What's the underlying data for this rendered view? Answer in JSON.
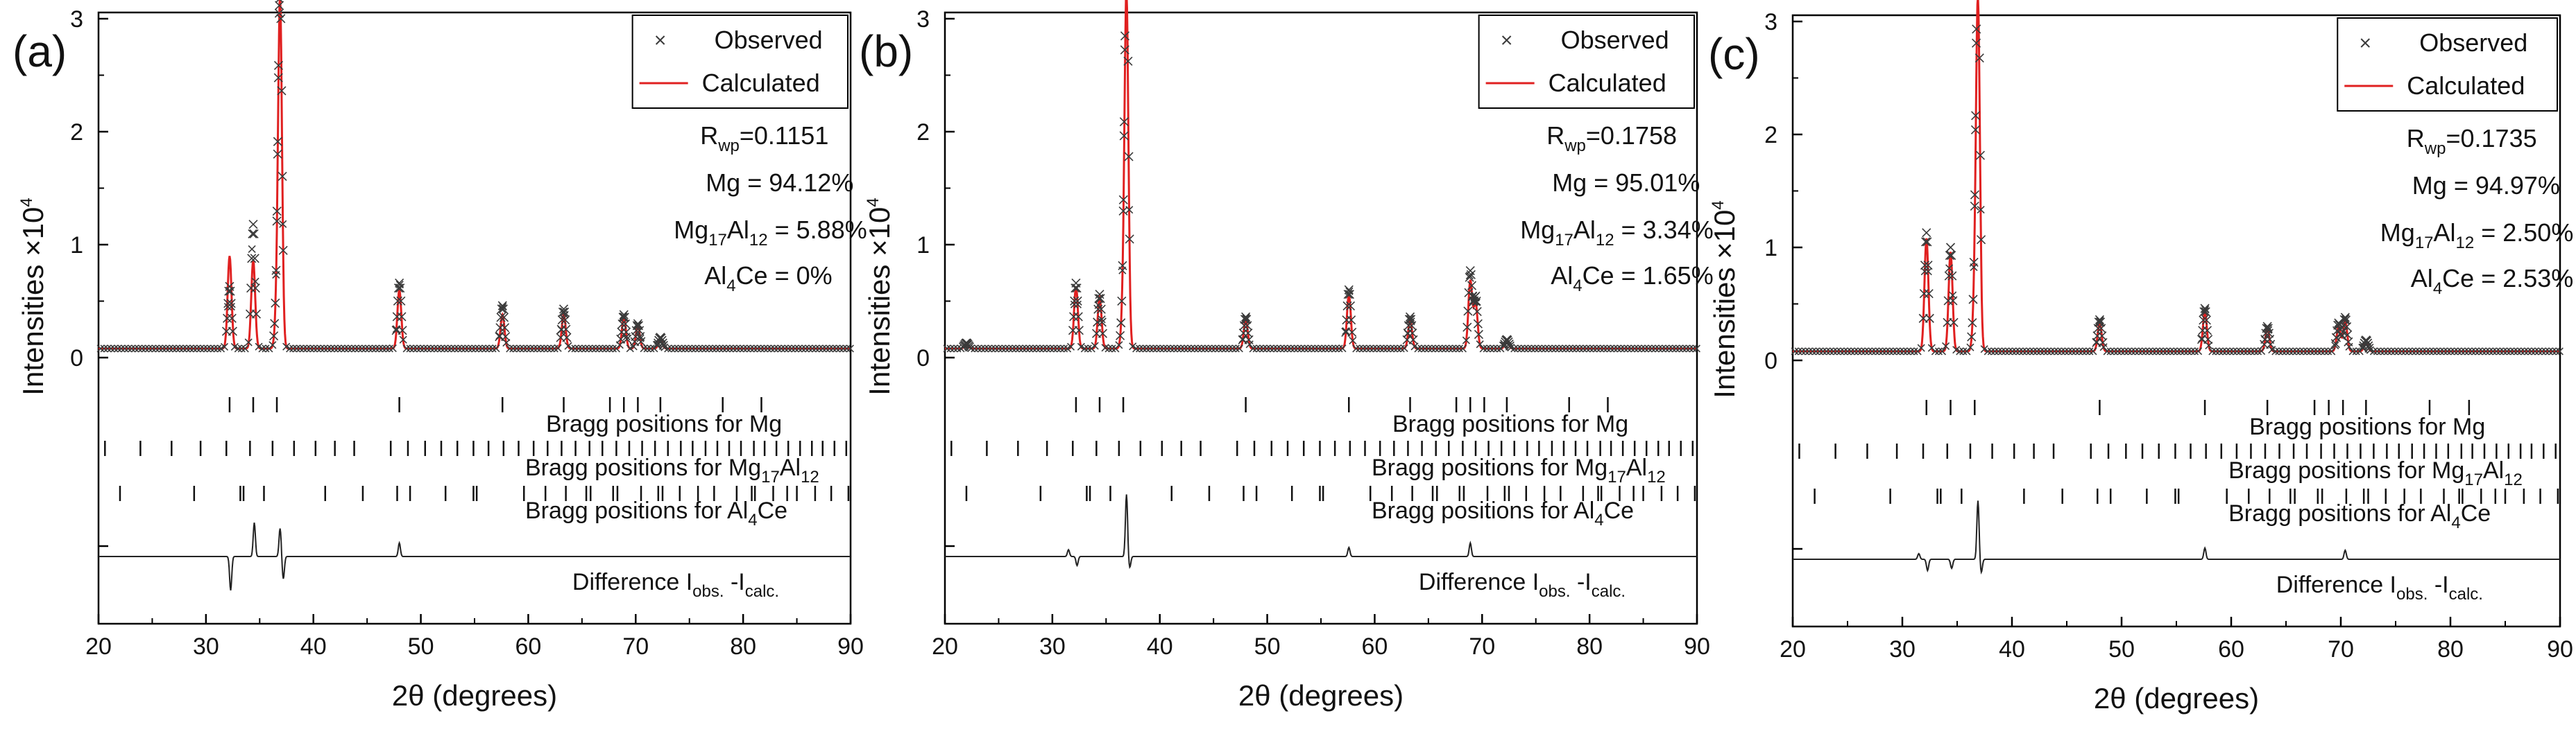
{
  "chart_data": [
    {
      "type": "line",
      "panel_label": "(a)",
      "xlabel": "2θ (degrees)",
      "ylabel_text": "Intensities ×10",
      "ylabel_sup": "4",
      "xlim": [
        20,
        90
      ],
      "xticks": [
        "20",
        "30",
        "40",
        "50",
        "60",
        "70",
        "80",
        "90"
      ],
      "yticks": [
        "0",
        "1",
        "2",
        "3"
      ],
      "legend": {
        "observed": "Observed",
        "calculated": "Calculated",
        "position": "top-right"
      },
      "rwp": {
        "prefix": "R",
        "sub": "wp",
        "value": "=0.1151"
      },
      "phases": [
        {
          "label": "Mg",
          "sub1": "",
          "mid": "",
          "sub2": "",
          "value": " = 94.12%"
        },
        {
          "label": "Mg",
          "sub1": "17",
          "mid": "Al",
          "sub2": "12",
          "value": " = 5.88%"
        },
        {
          "label": "Al",
          "sub1": "4",
          "mid": "Ce",
          "sub2": "",
          "value": " = 0%"
        }
      ],
      "bragg_labels": {
        "mg": "Bragg positions for Mg",
        "mg17_prefix": "Bragg positions for Mg",
        "mg17_sub1": "17",
        "mg17_mid": "Al",
        "mg17_sub2": "12",
        "al4ce_prefix": "Bragg positions for Al",
        "al4ce_sub": "4",
        "al4ce_suffix": "Ce"
      },
      "difference_label": {
        "text": "Difference I",
        "sub1": "obs.",
        "mid": " -I",
        "sub2": "calc."
      },
      "background": 0.08,
      "observed_peaks": [
        [
          32.2,
          0.55
        ],
        [
          34.4,
          1.1
        ],
        [
          36.6,
          0.35
        ],
        [
          36.9,
          3.12
        ],
        [
          48.0,
          0.58
        ],
        [
          57.6,
          0.38
        ],
        [
          63.3,
          0.35
        ],
        [
          68.9,
          0.3
        ],
        [
          70.2,
          0.22
        ],
        [
          72.3,
          0.1
        ]
      ],
      "calculated_peaks": [
        [
          32.2,
          0.82
        ],
        [
          34.4,
          0.78
        ],
        [
          36.6,
          0.3
        ],
        [
          36.9,
          3.05
        ],
        [
          48.0,
          0.52
        ],
        [
          57.6,
          0.3
        ],
        [
          63.3,
          0.3
        ],
        [
          68.9,
          0.28
        ],
        [
          70.2,
          0.2
        ],
        [
          72.3,
          0.08
        ]
      ],
      "difference_features": [
        [
          32.3,
          -0.3
        ],
        [
          34.5,
          0.3
        ],
        [
          36.9,
          0.25
        ],
        [
          37.2,
          -0.2
        ],
        [
          48.0,
          0.12
        ]
      ],
      "bragg_positions": {
        "mg": [
          32.2,
          34.4,
          36.6,
          48.0,
          57.6,
          63.3,
          67.6,
          68.9,
          70.2,
          72.3,
          78.1,
          81.7
        ],
        "mg17al12": [
          20.6,
          23.9,
          26.8,
          29.5,
          31.9,
          34.1,
          36.2,
          38.2,
          40.2,
          42.0,
          43.8,
          47.2,
          48.8,
          50.4,
          51.9,
          53.4,
          54.9,
          56.3,
          57.7,
          59.1,
          60.5,
          61.8,
          63.1,
          64.4,
          65.7,
          66.9,
          68.2,
          69.4,
          70.6,
          71.8,
          73.0,
          74.2,
          75.3,
          76.5,
          77.6,
          78.7,
          79.8,
          81.0,
          82.0,
          83.1,
          84.2,
          85.3,
          86.4,
          87.4,
          88.5,
          89.6
        ],
        "al4ce": [
          22.0,
          28.9,
          33.2,
          33.5,
          35.4,
          41.1,
          44.6,
          47.8,
          49.0,
          52.3,
          54.9,
          55.2,
          59.6,
          61.6,
          63.5,
          65.4,
          65.8,
          67.9,
          68.3,
          70.5,
          72.1,
          72.5,
          74.1,
          75.8,
          77.3,
          79.4,
          80.8,
          81.1,
          82.8,
          84.1,
          85.0,
          86.7,
          88.2,
          89.8
        ]
      }
    },
    {
      "type": "line",
      "panel_label": "(b)",
      "xlabel": "2θ (degrees)",
      "ylabel_text": "Intensities ×10",
      "ylabel_sup": "4",
      "xlim": [
        20,
        90
      ],
      "xticks": [
        "20",
        "30",
        "40",
        "50",
        "60",
        "70",
        "80",
        "90"
      ],
      "yticks": [
        "0",
        "1",
        "2",
        "3"
      ],
      "legend": {
        "observed": "Observed",
        "calculated": "Calculated",
        "position": "top-right"
      },
      "rwp": {
        "prefix": "R",
        "sub": "wp",
        "value": "=0.1758"
      },
      "phases": [
        {
          "label": "Mg",
          "sub1": "",
          "mid": "",
          "sub2": "",
          "value": " = 95.01%"
        },
        {
          "label": "Mg",
          "sub1": "17",
          "mid": "Al",
          "sub2": "12",
          "value": " = 3.34%"
        },
        {
          "label": "Al",
          "sub1": "4",
          "mid": "Ce",
          "sub2": "",
          "value": " = 1.65%"
        }
      ],
      "bragg_labels": {
        "mg": "Bragg positions for Mg",
        "mg17_prefix": "Bragg positions for Mg",
        "mg17_sub1": "17",
        "mg17_mid": "Al",
        "mg17_sub2": "12",
        "al4ce_prefix": "Bragg positions for Al",
        "al4ce_sub": "4",
        "al4ce_suffix": "Ce"
      },
      "difference_label": {
        "text": "Difference I",
        "sub1": "obs.",
        "mid": " -I",
        "sub2": "calc."
      },
      "background": 0.08,
      "observed_peaks": [
        [
          22.0,
          0.05
        ],
        [
          32.2,
          0.58
        ],
        [
          34.4,
          0.48
        ],
        [
          36.6,
          0.35
        ],
        [
          36.9,
          3.48
        ],
        [
          48.0,
          0.28
        ],
        [
          57.6,
          0.52
        ],
        [
          63.3,
          0.28
        ],
        [
          68.9,
          0.68
        ],
        [
          69.4,
          0.45
        ],
        [
          72.3,
          0.08
        ]
      ],
      "calculated_peaks": [
        [
          22.0,
          0.04
        ],
        [
          32.2,
          0.55
        ],
        [
          34.4,
          0.45
        ],
        [
          36.6,
          0.32
        ],
        [
          36.9,
          3.08
        ],
        [
          48.0,
          0.26
        ],
        [
          57.6,
          0.48
        ],
        [
          63.3,
          0.25
        ],
        [
          68.9,
          0.6
        ],
        [
          69.4,
          0.4
        ],
        [
          72.3,
          0.07
        ]
      ],
      "difference_features": [
        [
          31.5,
          0.06
        ],
        [
          32.3,
          -0.08
        ],
        [
          36.9,
          0.55
        ],
        [
          37.2,
          -0.1
        ],
        [
          57.6,
          0.08
        ],
        [
          68.9,
          0.12
        ]
      ],
      "bragg_positions": {
        "mg": [
          32.2,
          34.4,
          36.6,
          48.0,
          57.6,
          63.3,
          67.6,
          68.9,
          70.2,
          72.3,
          78.1,
          81.7
        ],
        "mg17al12": [
          20.6,
          23.9,
          26.8,
          29.5,
          31.9,
          34.1,
          36.2,
          38.2,
          40.2,
          42.0,
          43.8,
          47.2,
          48.8,
          50.4,
          51.9,
          53.4,
          54.9,
          56.3,
          57.7,
          59.1,
          60.5,
          61.8,
          63.1,
          64.4,
          65.7,
          66.9,
          68.2,
          69.4,
          70.6,
          71.8,
          73.0,
          74.2,
          75.3,
          76.5,
          77.6,
          78.7,
          79.8,
          81.0,
          82.0,
          83.1,
          84.2,
          85.3,
          86.4,
          87.4,
          88.5,
          89.6
        ],
        "al4ce": [
          22.0,
          28.9,
          33.2,
          33.5,
          35.4,
          41.1,
          44.6,
          47.8,
          49.0,
          52.3,
          54.9,
          55.2,
          59.6,
          61.6,
          63.5,
          65.4,
          65.8,
          67.9,
          68.3,
          70.5,
          72.1,
          72.5,
          74.1,
          75.8,
          77.3,
          79.4,
          80.8,
          81.1,
          82.8,
          84.1,
          85.0,
          86.7,
          88.2,
          89.8
        ]
      }
    },
    {
      "type": "line",
      "panel_label": "(c)",
      "xlabel": "2θ (degrees)",
      "ylabel_text": "Intensities ×10",
      "ylabel_sup": "4",
      "xlim": [
        20,
        90
      ],
      "xticks": [
        "20",
        "30",
        "40",
        "50",
        "60",
        "70",
        "80",
        "90"
      ],
      "yticks": [
        "0",
        "1",
        "2",
        "3"
      ],
      "legend": {
        "observed": "Observed",
        "calculated": "Calculated",
        "position": "top-right"
      },
      "rwp": {
        "prefix": "R",
        "sub": "wp",
        "value": "=0.1735"
      },
      "phases": [
        {
          "label": "Mg",
          "sub1": "",
          "mid": "",
          "sub2": "",
          "value": " = 94.97%"
        },
        {
          "label": "Mg",
          "sub1": "17",
          "mid": "Al",
          "sub2": "12",
          "value": " = 2.50%"
        },
        {
          "label": "Al",
          "sub1": "4",
          "mid": "Ce",
          "sub2": "",
          "value": " = 2.53%"
        }
      ],
      "bragg_labels": {
        "mg": "Bragg positions for Mg",
        "mg17_prefix": "Bragg positions for Mg",
        "mg17_sub1": "17",
        "mg17_mid": "Al",
        "mg17_sub2": "12",
        "al4ce_prefix": "Bragg positions for Al",
        "al4ce_sub": "4",
        "al4ce_suffix": "Ce"
      },
      "difference_label": {
        "text": "Difference I",
        "sub1": "obs.",
        "mid": " -I",
        "sub2": "calc."
      },
      "background": 0.08,
      "observed_peaks": [
        [
          32.2,
          1.05
        ],
        [
          34.4,
          0.92
        ],
        [
          36.6,
          0.4
        ],
        [
          36.9,
          3.55
        ],
        [
          48.0,
          0.28
        ],
        [
          57.6,
          0.38
        ],
        [
          63.3,
          0.22
        ],
        [
          69.8,
          0.25
        ],
        [
          70.4,
          0.3
        ],
        [
          72.3,
          0.1
        ]
      ],
      "calculated_peaks": [
        [
          32.2,
          1.0
        ],
        [
          34.4,
          0.88
        ],
        [
          36.6,
          0.36
        ],
        [
          36.9,
          3.05
        ],
        [
          48.0,
          0.25
        ],
        [
          57.6,
          0.35
        ],
        [
          63.3,
          0.2
        ],
        [
          69.8,
          0.22
        ],
        [
          70.4,
          0.27
        ],
        [
          72.3,
          0.08
        ]
      ],
      "difference_features": [
        [
          31.5,
          0.05
        ],
        [
          32.3,
          -0.1
        ],
        [
          34.5,
          -0.08
        ],
        [
          36.9,
          0.52
        ],
        [
          37.2,
          -0.12
        ],
        [
          57.6,
          0.1
        ],
        [
          70.4,
          0.08
        ]
      ],
      "bragg_positions": {
        "mg": [
          32.2,
          34.4,
          36.6,
          48.0,
          57.6,
          63.3,
          67.6,
          68.9,
          70.2,
          72.3,
          78.1,
          81.7
        ],
        "mg17al12": [
          20.6,
          23.9,
          26.8,
          29.5,
          31.9,
          34.1,
          36.2,
          38.2,
          40.2,
          42.0,
          43.8,
          47.2,
          48.8,
          50.4,
          51.9,
          53.4,
          54.9,
          56.3,
          57.7,
          59.1,
          60.5,
          61.8,
          63.1,
          64.4,
          65.7,
          66.9,
          68.2,
          69.4,
          70.6,
          71.8,
          73.0,
          74.2,
          75.3,
          76.5,
          77.6,
          78.7,
          79.8,
          81.0,
          82.0,
          83.1,
          84.2,
          85.3,
          86.4,
          87.4,
          88.5,
          89.6
        ],
        "al4ce": [
          22.0,
          28.9,
          33.2,
          33.5,
          35.4,
          41.1,
          44.6,
          47.8,
          49.0,
          52.3,
          54.9,
          55.2,
          59.6,
          61.6,
          63.5,
          65.4,
          65.8,
          67.9,
          68.3,
          70.5,
          72.1,
          72.5,
          74.1,
          75.8,
          77.3,
          79.4,
          80.8,
          81.1,
          82.8,
          84.1,
          85.0,
          86.7,
          88.2,
          89.8
        ]
      }
    }
  ],
  "colors": {
    "calculated": "#e02020",
    "observed": "#3a3a3a",
    "axis": "#000000"
  }
}
